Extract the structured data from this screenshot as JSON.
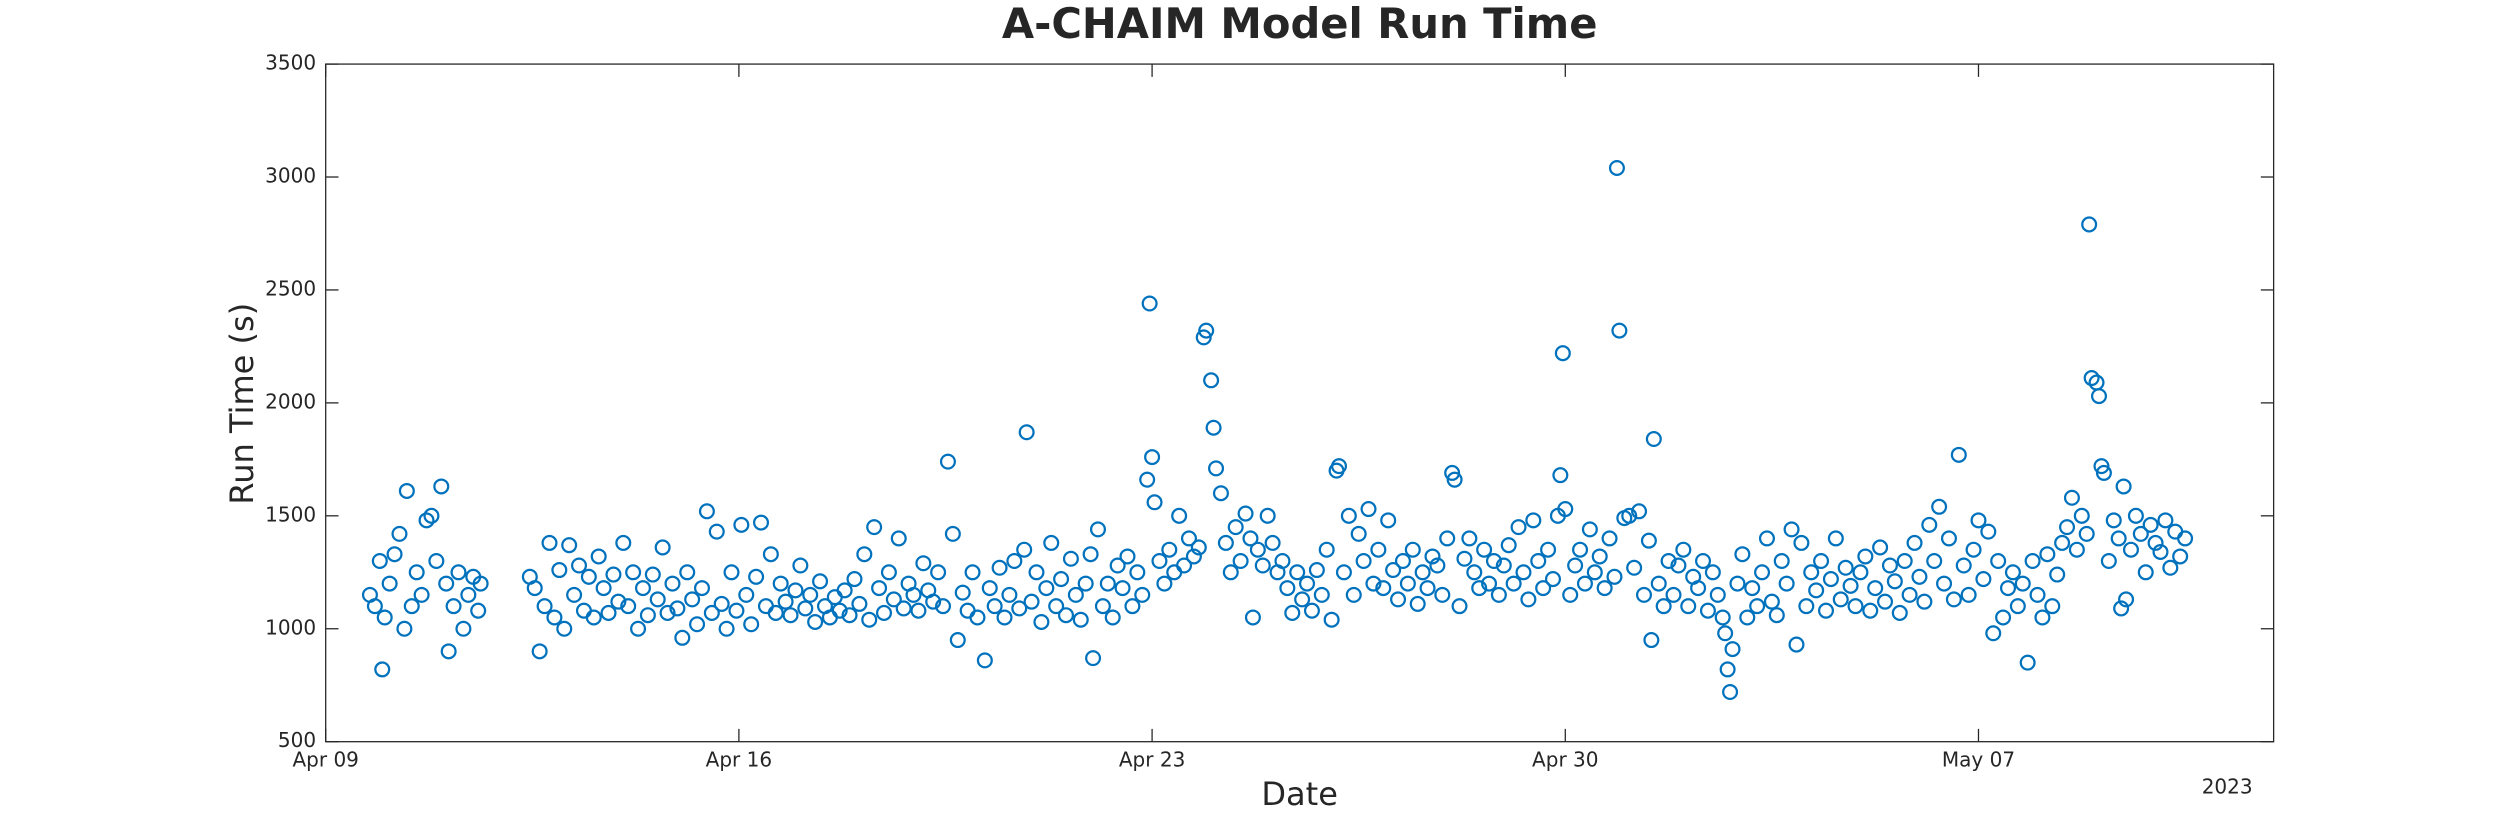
{
  "chart_data": {
    "type": "scatter",
    "title": "A-CHAIM Model Run Time",
    "x_label": "Date",
    "y_label": "Run Time (s)",
    "x_year_label": "2023",
    "color": "#0072bd",
    "xlim": [
      "2023-04-09 00:00",
      "2023-05-12 00:00"
    ],
    "xticks": [
      {
        "value": "2023-04-09 00:00",
        "label": "Apr 09"
      },
      {
        "value": "2023-04-16 00:00",
        "label": "Apr 16"
      },
      {
        "value": "2023-04-23 00:00",
        "label": "Apr 23"
      },
      {
        "value": "2023-04-30 00:00",
        "label": "Apr 30"
      },
      {
        "value": "2023-05-07 00:00",
        "label": "May 07"
      }
    ],
    "ylim": [
      500,
      3500
    ],
    "yticks": [
      500,
      1000,
      1500,
      2000,
      2500,
      3000,
      3500
    ],
    "x": [
      "2023-04-09 18:00",
      "2023-04-09 20:00",
      "2023-04-09 22:00",
      "2023-04-09 23:00",
      "2023-04-10 00:00",
      "2023-04-10 02:00",
      "2023-04-10 04:00",
      "2023-04-10 06:00",
      "2023-04-10 08:00",
      "2023-04-10 09:00",
      "2023-04-10 11:00",
      "2023-04-10 13:00",
      "2023-04-10 15:00",
      "2023-04-10 17:00",
      "2023-04-10 19:00",
      "2023-04-10 21:00",
      "2023-04-10 23:00",
      "2023-04-11 01:00",
      "2023-04-11 02:00",
      "2023-04-11 04:00",
      "2023-04-11 06:00",
      "2023-04-11 08:00",
      "2023-04-11 10:00",
      "2023-04-11 12:00",
      "2023-04-11 14:00",
      "2023-04-11 15:00",
      "2023-04-12 11:00",
      "2023-04-12 13:00",
      "2023-04-12 15:00",
      "2023-04-12 17:00",
      "2023-04-12 19:00",
      "2023-04-12 21:00",
      "2023-04-12 23:00",
      "2023-04-13 01:00",
      "2023-04-13 03:00",
      "2023-04-13 05:00",
      "2023-04-13 07:00",
      "2023-04-13 09:00",
      "2023-04-13 11:00",
      "2023-04-13 13:00",
      "2023-04-13 15:00",
      "2023-04-13 17:00",
      "2023-04-13 19:00",
      "2023-04-13 21:00",
      "2023-04-13 23:00",
      "2023-04-14 01:00",
      "2023-04-14 03:00",
      "2023-04-14 05:00",
      "2023-04-14 07:00",
      "2023-04-14 09:00",
      "2023-04-14 11:00",
      "2023-04-14 13:00",
      "2023-04-14 15:00",
      "2023-04-14 17:00",
      "2023-04-14 19:00",
      "2023-04-14 21:00",
      "2023-04-14 23:00",
      "2023-04-15 01:00",
      "2023-04-15 03:00",
      "2023-04-15 05:00",
      "2023-04-15 07:00",
      "2023-04-15 09:00",
      "2023-04-15 11:00",
      "2023-04-15 13:00",
      "2023-04-15 15:00",
      "2023-04-15 17:00",
      "2023-04-15 19:00",
      "2023-04-15 21:00",
      "2023-04-15 23:00",
      "2023-04-16 01:00",
      "2023-04-16 03:00",
      "2023-04-16 05:00",
      "2023-04-16 07:00",
      "2023-04-16 09:00",
      "2023-04-16 11:00",
      "2023-04-16 13:00",
      "2023-04-16 15:00",
      "2023-04-16 17:00",
      "2023-04-16 19:00",
      "2023-04-16 21:00",
      "2023-04-16 23:00",
      "2023-04-17 01:00",
      "2023-04-17 03:00",
      "2023-04-17 05:00",
      "2023-04-17 07:00",
      "2023-04-17 09:00",
      "2023-04-17 11:00",
      "2023-04-17 13:00",
      "2023-04-17 15:00",
      "2023-04-17 17:00",
      "2023-04-17 19:00",
      "2023-04-17 21:00",
      "2023-04-17 23:00",
      "2023-04-18 01:00",
      "2023-04-18 03:00",
      "2023-04-18 05:00",
      "2023-04-18 07:00",
      "2023-04-18 09:00",
      "2023-04-18 11:00",
      "2023-04-18 13:00",
      "2023-04-18 15:00",
      "2023-04-18 17:00",
      "2023-04-18 19:00",
      "2023-04-18 21:00",
      "2023-04-18 23:00",
      "2023-04-19 01:00",
      "2023-04-19 03:00",
      "2023-04-19 05:00",
      "2023-04-19 07:00",
      "2023-04-19 09:00",
      "2023-04-19 11:00",
      "2023-04-19 13:00",
      "2023-04-19 15:00",
      "2023-04-19 17:00",
      "2023-04-19 19:00",
      "2023-04-19 21:00",
      "2023-04-19 23:00",
      "2023-04-20 01:00",
      "2023-04-20 04:00",
      "2023-04-20 06:00",
      "2023-04-20 08:00",
      "2023-04-20 10:00",
      "2023-04-20 12:00",
      "2023-04-20 14:00",
      "2023-04-20 16:00",
      "2023-04-20 18:00",
      "2023-04-20 20:00",
      "2023-04-20 21:00",
      "2023-04-20 23:00",
      "2023-04-21 01:00",
      "2023-04-21 03:00",
      "2023-04-21 05:00",
      "2023-04-21 07:00",
      "2023-04-21 09:00",
      "2023-04-21 11:00",
      "2023-04-21 13:00",
      "2023-04-21 15:00",
      "2023-04-21 17:00",
      "2023-04-21 19:00",
      "2023-04-21 21:00",
      "2023-04-21 23:00",
      "2023-04-22 00:00",
      "2023-04-22 02:00",
      "2023-04-22 04:00",
      "2023-04-22 06:00",
      "2023-04-22 08:00",
      "2023-04-22 10:00",
      "2023-04-22 12:00",
      "2023-04-22 14:00",
      "2023-04-22 16:00",
      "2023-04-22 18:00",
      "2023-04-22 20:00",
      "2023-04-22 22:00",
      "2023-04-22 23:00",
      "2023-04-23 00:00",
      "2023-04-23 01:00",
      "2023-04-23 03:00",
      "2023-04-23 05:00",
      "2023-04-23 07:00",
      "2023-04-23 09:00",
      "2023-04-23 11:00",
      "2023-04-23 13:00",
      "2023-04-23 15:00",
      "2023-04-23 17:00",
      "2023-04-23 19:00",
      "2023-04-23 21:00",
      "2023-04-23 22:00",
      "2023-04-24 00:00",
      "2023-04-24 01:00",
      "2023-04-24 02:00",
      "2023-04-24 04:00",
      "2023-04-24 06:00",
      "2023-04-24 08:00",
      "2023-04-24 10:00",
      "2023-04-24 12:00",
      "2023-04-24 14:00",
      "2023-04-24 16:00",
      "2023-04-24 17:00",
      "2023-04-24 19:00",
      "2023-04-24 21:00",
      "2023-04-24 23:00",
      "2023-04-25 01:00",
      "2023-04-25 03:00",
      "2023-04-25 05:00",
      "2023-04-25 07:00",
      "2023-04-25 09:00",
      "2023-04-25 11:00",
      "2023-04-25 13:00",
      "2023-04-25 15:00",
      "2023-04-25 17:00",
      "2023-04-25 19:00",
      "2023-04-25 21:00",
      "2023-04-25 23:00",
      "2023-04-26 01:00",
      "2023-04-26 03:00",
      "2023-04-26 04:00",
      "2023-04-26 06:00",
      "2023-04-26 08:00",
      "2023-04-26 10:00",
      "2023-04-26 12:00",
      "2023-04-26 14:00",
      "2023-04-26 16:00",
      "2023-04-26 18:00",
      "2023-04-26 20:00",
      "2023-04-26 22:00",
      "2023-04-27 00:00",
      "2023-04-27 02:00",
      "2023-04-27 04:00",
      "2023-04-27 06:00",
      "2023-04-27 08:00",
      "2023-04-27 10:00",
      "2023-04-27 12:00",
      "2023-04-27 14:00",
      "2023-04-27 16:00",
      "2023-04-27 18:00",
      "2023-04-27 20:00",
      "2023-04-27 22:00",
      "2023-04-28 00:00",
      "2023-04-28 02:00",
      "2023-04-28 03:00",
      "2023-04-28 05:00",
      "2023-04-28 07:00",
      "2023-04-28 09:00",
      "2023-04-28 11:00",
      "2023-04-28 13:00",
      "2023-04-28 15:00",
      "2023-04-28 17:00",
      "2023-04-28 19:00",
      "2023-04-28 21:00",
      "2023-04-28 23:00",
      "2023-04-29 01:00",
      "2023-04-29 03:00",
      "2023-04-29 05:00",
      "2023-04-29 07:00",
      "2023-04-29 09:00",
      "2023-04-29 11:00",
      "2023-04-29 13:00",
      "2023-04-29 15:00",
      "2023-04-29 17:00",
      "2023-04-29 19:00",
      "2023-04-29 21:00",
      "2023-04-29 22:00",
      "2023-04-29 23:00",
      "2023-04-30 00:00",
      "2023-04-30 02:00",
      "2023-04-30 04:00",
      "2023-04-30 06:00",
      "2023-04-30 08:00",
      "2023-04-30 10:00",
      "2023-04-30 12:00",
      "2023-04-30 14:00",
      "2023-04-30 16:00",
      "2023-04-30 18:00",
      "2023-04-30 20:00",
      "2023-04-30 21:00",
      "2023-04-30 22:00",
      "2023-05-01 00:00",
      "2023-05-01 02:00",
      "2023-05-01 04:00",
      "2023-05-01 06:00",
      "2023-05-01 08:00",
      "2023-05-01 10:00",
      "2023-05-01 11:00",
      "2023-05-01 12:00",
      "2023-05-01 14:00",
      "2023-05-01 16:00",
      "2023-05-01 18:00",
      "2023-05-01 20:00",
      "2023-05-01 22:00",
      "2023-05-02 00:00",
      "2023-05-02 02:00",
      "2023-05-02 04:00",
      "2023-05-02 06:00",
      "2023-05-02 08:00",
      "2023-05-02 10:00",
      "2023-05-02 12:00",
      "2023-05-02 14:00",
      "2023-05-02 16:00",
      "2023-05-02 17:00",
      "2023-05-02 18:00",
      "2023-05-02 19:00",
      "2023-05-02 20:00",
      "2023-05-02 22:00",
      "2023-05-03 00:00",
      "2023-05-03 02:00",
      "2023-05-03 04:00",
      "2023-05-03 06:00",
      "2023-05-03 08:00",
      "2023-05-03 10:00",
      "2023-05-03 12:00",
      "2023-05-03 14:00",
      "2023-05-03 16:00",
      "2023-05-03 18:00",
      "2023-05-03 20:00",
      "2023-05-03 22:00",
      "2023-05-04 00:00",
      "2023-05-04 02:00",
      "2023-05-04 04:00",
      "2023-05-04 06:00",
      "2023-05-04 08:00",
      "2023-05-04 10:00",
      "2023-05-04 12:00",
      "2023-05-04 14:00",
      "2023-05-04 16:00",
      "2023-05-04 18:00",
      "2023-05-04 20:00",
      "2023-05-04 22:00",
      "2023-05-05 00:00",
      "2023-05-05 02:00",
      "2023-05-05 04:00",
      "2023-05-05 06:00",
      "2023-05-05 08:00",
      "2023-05-05 10:00",
      "2023-05-05 12:00",
      "2023-05-05 14:00",
      "2023-05-05 16:00",
      "2023-05-05 18:00",
      "2023-05-05 20:00",
      "2023-05-05 22:00",
      "2023-05-06 00:00",
      "2023-05-06 02:00",
      "2023-05-06 04:00",
      "2023-05-06 06:00",
      "2023-05-06 08:00",
      "2023-05-06 10:00",
      "2023-05-06 12:00",
      "2023-05-06 14:00",
      "2023-05-06 16:00",
      "2023-05-06 18:00",
      "2023-05-06 20:00",
      "2023-05-06 22:00",
      "2023-05-07 00:00",
      "2023-05-07 02:00",
      "2023-05-07 04:00",
      "2023-05-07 06:00",
      "2023-05-07 08:00",
      "2023-05-07 10:00",
      "2023-05-07 12:00",
      "2023-05-07 14:00",
      "2023-05-07 16:00",
      "2023-05-07 18:00",
      "2023-05-07 20:00",
      "2023-05-07 22:00",
      "2023-05-08 00:00",
      "2023-05-08 02:00",
      "2023-05-08 04:00",
      "2023-05-08 06:00",
      "2023-05-08 08:00",
      "2023-05-08 10:00",
      "2023-05-08 12:00",
      "2023-05-08 14:00",
      "2023-05-08 16:00",
      "2023-05-08 18:00",
      "2023-05-08 20:00",
      "2023-05-08 21:00",
      "2023-05-08 22:00",
      "2023-05-09 00:00",
      "2023-05-09 01:00",
      "2023-05-09 02:00",
      "2023-05-09 03:00",
      "2023-05-09 05:00",
      "2023-05-09 07:00",
      "2023-05-09 09:00",
      "2023-05-09 10:00",
      "2023-05-09 11:00",
      "2023-05-09 12:00",
      "2023-05-09 14:00",
      "2023-05-09 16:00",
      "2023-05-09 18:00",
      "2023-05-09 20:00",
      "2023-05-09 22:00",
      "2023-05-10 00:00",
      "2023-05-10 02:00",
      "2023-05-10 04:00",
      "2023-05-10 06:00",
      "2023-05-10 08:00",
      "2023-05-10 10:00",
      "2023-05-10 12:00"
    ],
    "values": [
      1150,
      1100,
      1300,
      820,
      1050,
      1200,
      1330,
      1420,
      1000,
      1610,
      1100,
      1250,
      1150,
      1480,
      1500,
      1300,
      1630,
      1200,
      900,
      1100,
      1250,
      1000,
      1150,
      1230,
      1080,
      1200,
      1230,
      1180,
      900,
      1100,
      1380,
      1050,
      1260,
      1000,
      1370,
      1150,
      1280,
      1080,
      1230,
      1050,
      1320,
      1180,
      1070,
      1240,
      1120,
      1380,
      1100,
      1250,
      1000,
      1180,
      1060,
      1240,
      1130,
      1360,
      1070,
      1200,
      1090,
      960,
      1250,
      1130,
      1020,
      1180,
      1520,
      1070,
      1430,
      1110,
      1000,
      1250,
      1080,
      1460,
      1150,
      1020,
      1230,
      1470,
      1100,
      1330,
      1070,
      1200,
      1120,
      1060,
      1170,
      1280,
      1090,
      1150,
      1030,
      1210,
      1100,
      1050,
      1140,
      1080,
      1170,
      1060,
      1220,
      1110,
      1330,
      1040,
      1450,
      1180,
      1070,
      1250,
      1130,
      1400,
      1090,
      1200,
      1150,
      1080,
      1290,
      1170,
      1120,
      1250,
      1100,
      1740,
      1420,
      950,
      1160,
      1080,
      1250,
      1050,
      860,
      1180,
      1100,
      1270,
      1050,
      1150,
      1300,
      1090,
      1350,
      1870,
      1120,
      1250,
      1030,
      1180,
      1380,
      1100,
      1220,
      1060,
      1310,
      1150,
      1040,
      1200,
      1330,
      870,
      1440,
      1100,
      1200,
      1050,
      1280,
      1180,
      1320,
      1100,
      1250,
      1150,
      1660,
      2440,
      1760,
      1560,
      1300,
      1200,
      1350,
      1250,
      1500,
      1280,
      1400,
      1320,
      1360,
      2290,
      2320,
      2100,
      1890,
      1710,
      1600,
      1380,
      1250,
      1450,
      1300,
      1510,
      1400,
      1050,
      1350,
      1280,
      1500,
      1380,
      1250,
      1300,
      1180,
      1070,
      1250,
      1130,
      1200,
      1080,
      1260,
      1150,
      1350,
      1040,
      1700,
      1720,
      1250,
      1500,
      1150,
      1420,
      1300,
      1530,
      1200,
      1350,
      1180,
      1480,
      1260,
      1130,
      1300,
      1200,
      1350,
      1110,
      1250,
      1180,
      1320,
      1280,
      1150,
      1400,
      1690,
      1660,
      1100,
      1310,
      1400,
      1250,
      1180,
      1350,
      1200,
      1300,
      1150,
      1280,
      1370,
      1200,
      1450,
      1250,
      1130,
      1480,
      1300,
      1180,
      1350,
      1220,
      1500,
      1680,
      2220,
      1530,
      1150,
      1280,
      1350,
      1200,
      1440,
      1250,
      1320,
      1180,
      1400,
      1230,
      3040,
      2320,
      1490,
      1500,
      1270,
      1520,
      1150,
      1390,
      950,
      1840,
      1200,
      1100,
      1300,
      1150,
      1280,
      1350,
      1100,
      1230,
      1180,
      1300,
      1080,
      1250,
      1150,
      1050,
      980,
      820,
      720,
      910,
      1200,
      1330,
      1050,
      1180,
      1100,
      1250,
      1400,
      1120,
      1060,
      1300,
      1200,
      1440,
      930,
      1380,
      1100,
      1250,
      1170,
      1300,
      1080,
      1220,
      1400,
      1130,
      1270,
      1190,
      1100,
      1250,
      1320,
      1080,
      1180,
      1360,
      1120,
      1280,
      1210,
      1070,
      1300,
      1150,
      1380,
      1230,
      1120,
      1460,
      1300,
      1540,
      1200,
      1400,
      1130,
      1770,
      1280,
      1150,
      1350,
      1480,
      1220,
      1430,
      980,
      1300,
      1050,
      1180,
      1250,
      1100,
      1200,
      850,
      1300,
      1150,
      1050,
      1330,
      1100,
      1240,
      1380,
      1450,
      1580,
      1350,
      1500,
      1420,
      2790,
      2110,
      2090,
      2030,
      1720,
      1690,
      1300,
      1480,
      1400,
      1090,
      1630,
      1130,
      1350,
      1500,
      1420,
      1250,
      1460,
      1380,
      1340,
      1480,
      1270,
      1430,
      1320,
      1400
    ]
  }
}
